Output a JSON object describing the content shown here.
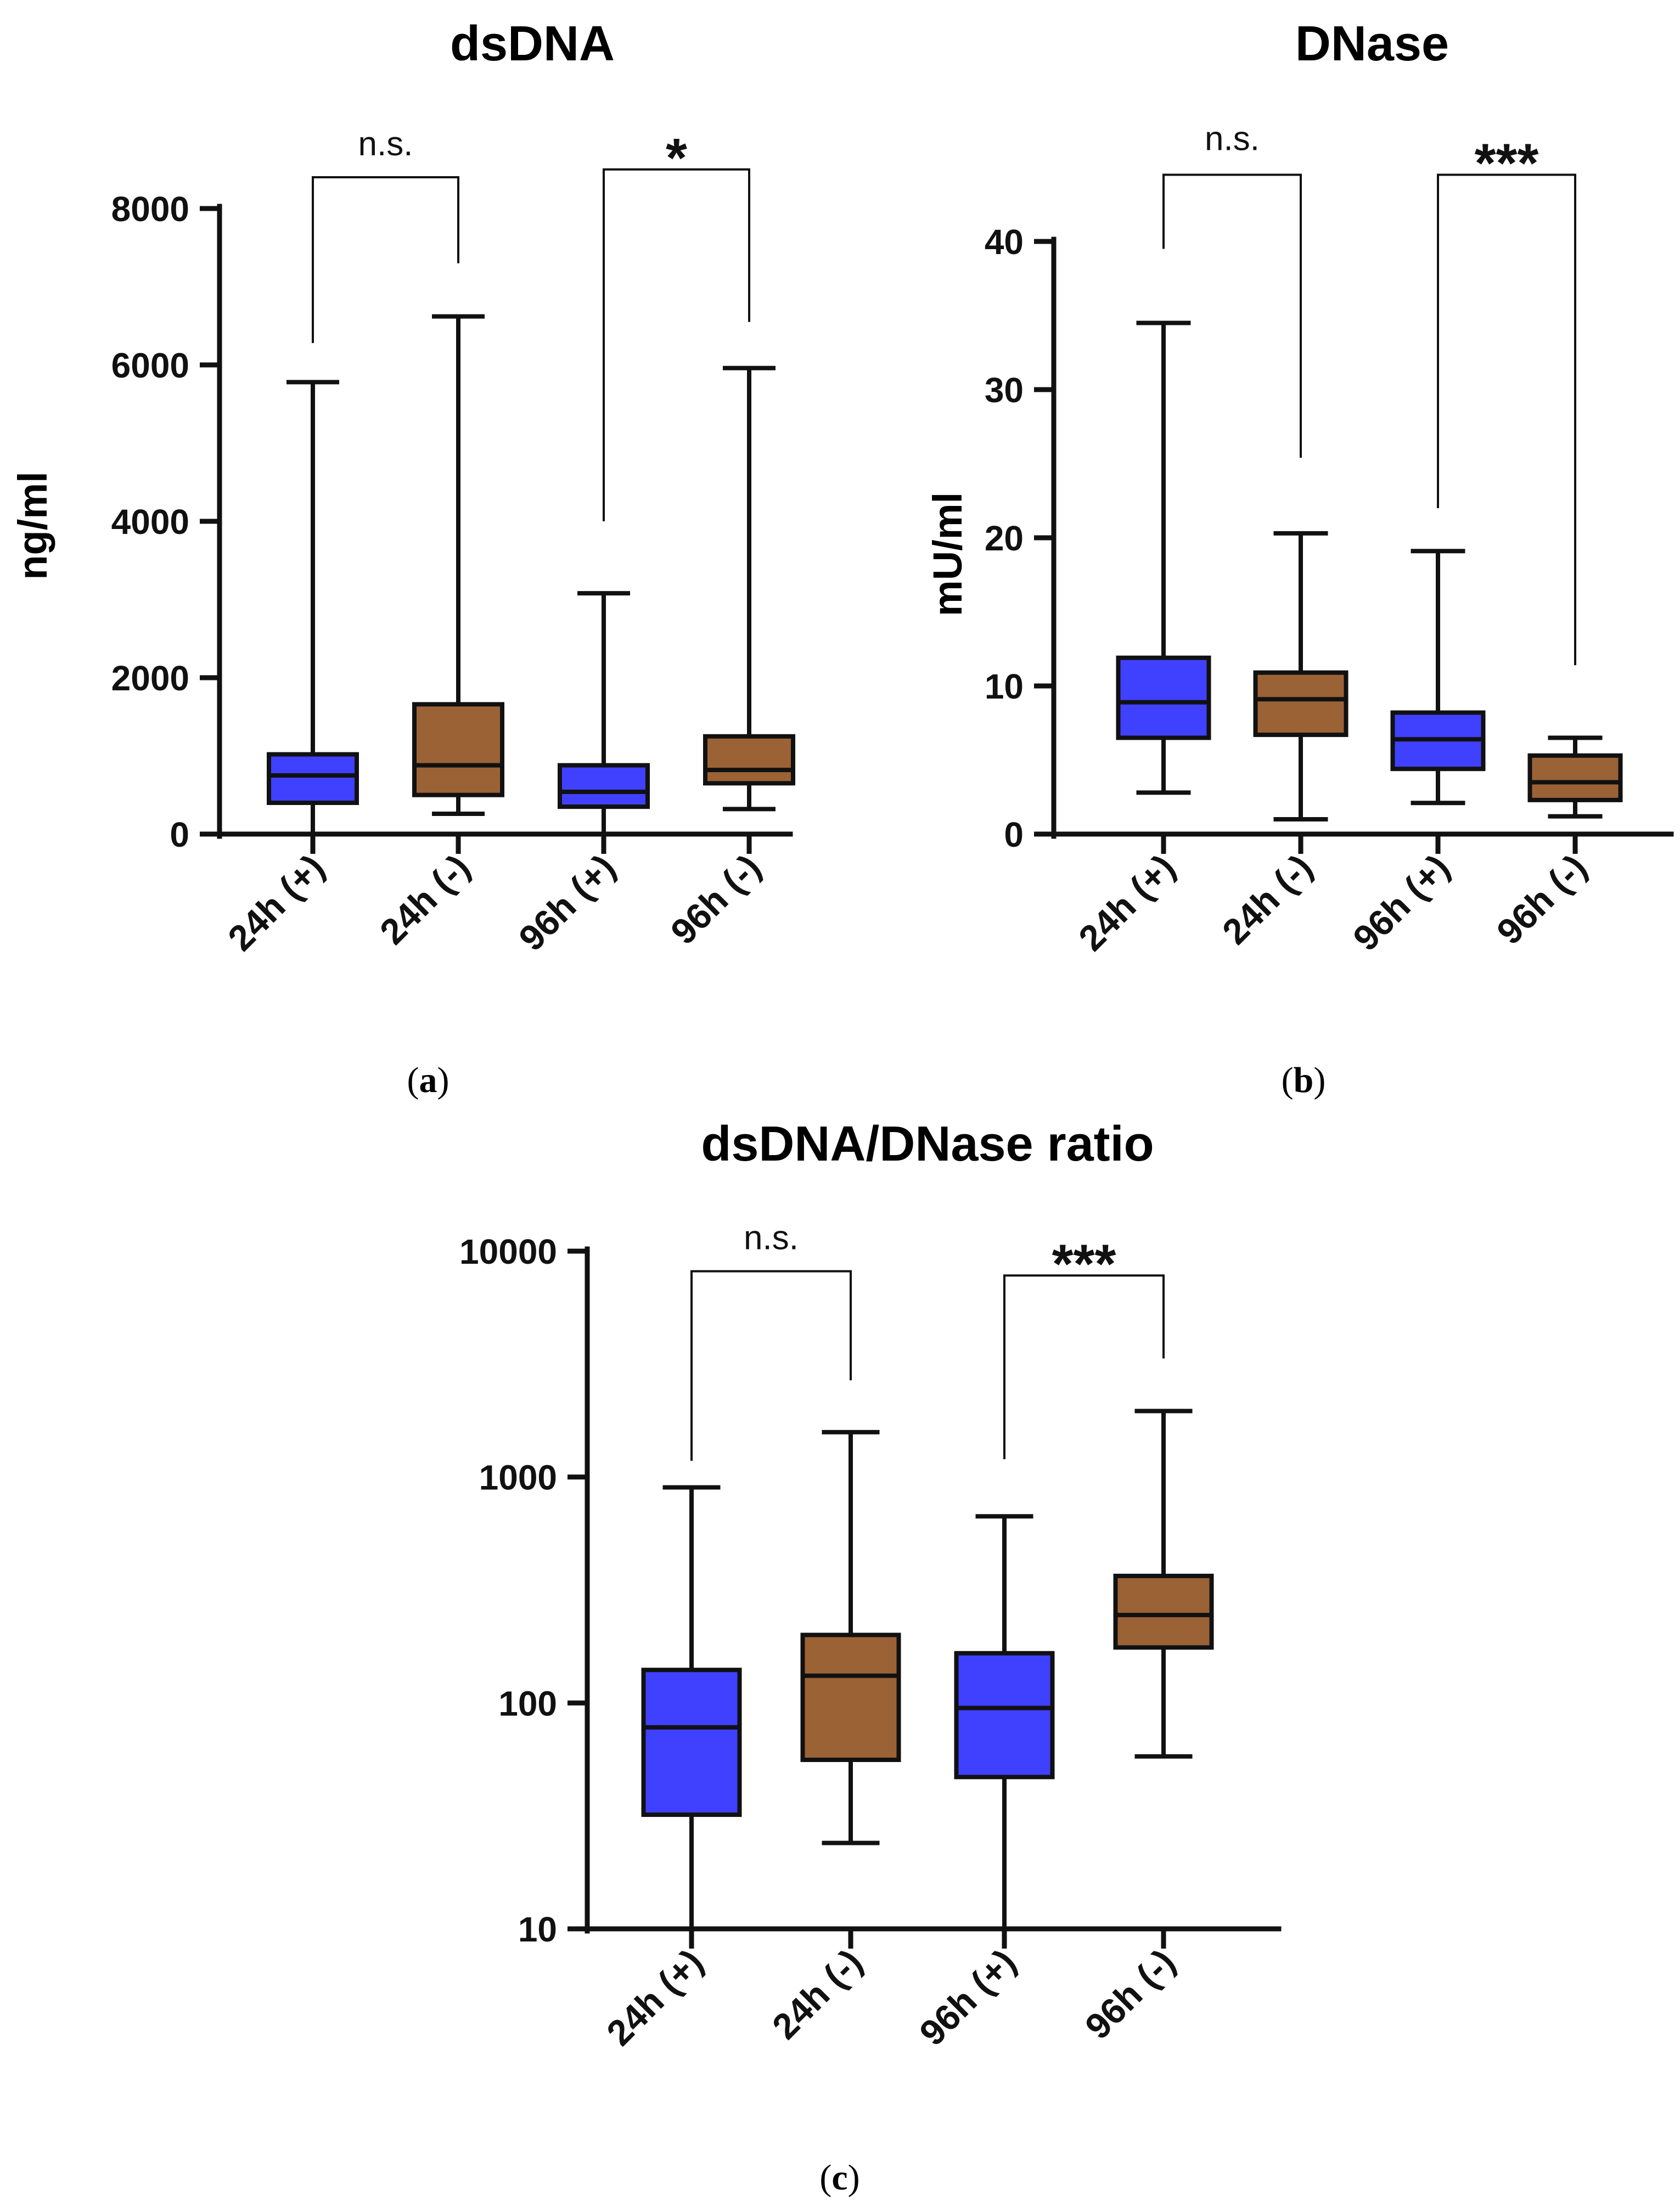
{
  "colors": {
    "plus": "#4040ff",
    "minus": "#9b6236",
    "ink": "#111111"
  },
  "chart_data": [
    {
      "type": "boxplot",
      "panel": "(a)",
      "panel_letter": "a",
      "title": "dsDNA",
      "ylabel": "ng/ml",
      "yscale": "linear",
      "ylim": [
        0,
        8000
      ],
      "yticks": [
        0,
        2000,
        4000,
        6000,
        8000
      ],
      "ytick_labels": [
        "0",
        "2000",
        "4000",
        "6000",
        "8000"
      ],
      "categories": [
        "24h (+)",
        "24h (-)",
        "96h (+)",
        "96h (-)"
      ],
      "group_color": [
        "plus",
        "minus",
        "plus",
        "minus"
      ],
      "boxes": [
        {
          "min": 0,
          "q1": 400,
          "median": 750,
          "q3": 1020,
          "max": 5780
        },
        {
          "min": 260,
          "q1": 500,
          "median": 880,
          "q3": 1660,
          "max": 6620
        },
        {
          "min": 0,
          "q1": 350,
          "median": 540,
          "q3": 880,
          "max": 3080
        },
        {
          "min": 320,
          "q1": 650,
          "median": 820,
          "q3": 1250,
          "max": 5960
        }
      ],
      "comparisons": [
        {
          "from": 0,
          "to": 1,
          "label": "n.s.",
          "level": 8400,
          "left_drop": 6280,
          "right_drop": 7300
        },
        {
          "from": 2,
          "to": 3,
          "label": "*",
          "level": 8500,
          "left_drop": 4000,
          "right_drop": 6550
        }
      ]
    },
    {
      "type": "boxplot",
      "panel": "(b)",
      "panel_letter": "b",
      "title": "DNase",
      "ylabel": "mU/ml",
      "yscale": "linear",
      "ylim": [
        0,
        40
      ],
      "yticks": [
        0,
        10,
        20,
        30,
        40
      ],
      "ytick_labels": [
        "0",
        "10",
        "20",
        "30",
        "40"
      ],
      "categories": [
        "24h (+)",
        "24h (-)",
        "96h (+)",
        "96h (-)"
      ],
      "group_color": [
        "plus",
        "minus",
        "plus",
        "minus"
      ],
      "boxes": [
        {
          "min": 2.8,
          "q1": 6.5,
          "median": 8.9,
          "q3": 11.9,
          "max": 34.5
        },
        {
          "min": 1.0,
          "q1": 6.7,
          "median": 9.1,
          "q3": 10.9,
          "max": 20.3
        },
        {
          "min": 2.1,
          "q1": 4.4,
          "median": 6.4,
          "q3": 8.2,
          "max": 19.1
        },
        {
          "min": 1.2,
          "q1": 2.3,
          "median": 3.5,
          "q3": 5.3,
          "max": 6.5
        }
      ],
      "comparisons": [
        {
          "from": 0,
          "to": 1,
          "label": "n.s.",
          "level": 44.5,
          "left_drop": 39.5,
          "right_drop": 25.4
        },
        {
          "from": 2,
          "to": 3,
          "label": "***",
          "level": 44.5,
          "left_drop": 22.0,
          "right_drop": 11.4
        }
      ]
    },
    {
      "type": "boxplot",
      "panel": "(c)",
      "panel_letter": "c",
      "title": "dsDNA/DNase ratio",
      "ylabel": "",
      "yscale": "log",
      "ylim": [
        10,
        10000
      ],
      "yticks": [
        10,
        100,
        1000,
        10000
      ],
      "ytick_labels": [
        "10",
        "100",
        "1000",
        "10000"
      ],
      "categories": [
        "24h (+)",
        "24h (-)",
        "96h (+)",
        "96h (-)"
      ],
      "group_color": [
        "plus",
        "minus",
        "plus",
        "minus"
      ],
      "boxes": [
        {
          "min": 10,
          "q1": 32,
          "median": 78,
          "q3": 140,
          "max": 900
        },
        {
          "min": 24,
          "q1": 56,
          "median": 132,
          "q3": 200,
          "max": 1580
        },
        {
          "min": 10,
          "q1": 47,
          "median": 95,
          "q3": 166,
          "max": 670
        },
        {
          "min": 58,
          "q1": 176,
          "median": 245,
          "q3": 365,
          "max": 1960
        }
      ],
      "comparisons": [
        {
          "from": 0,
          "to": 1,
          "label": "n.s.",
          "level": 8150,
          "left_drop": 1180,
          "right_drop": 2680
        },
        {
          "from": 2,
          "to": 3,
          "label": "***",
          "level": 7800,
          "left_drop": 1200,
          "right_drop": 3350
        }
      ]
    }
  ]
}
